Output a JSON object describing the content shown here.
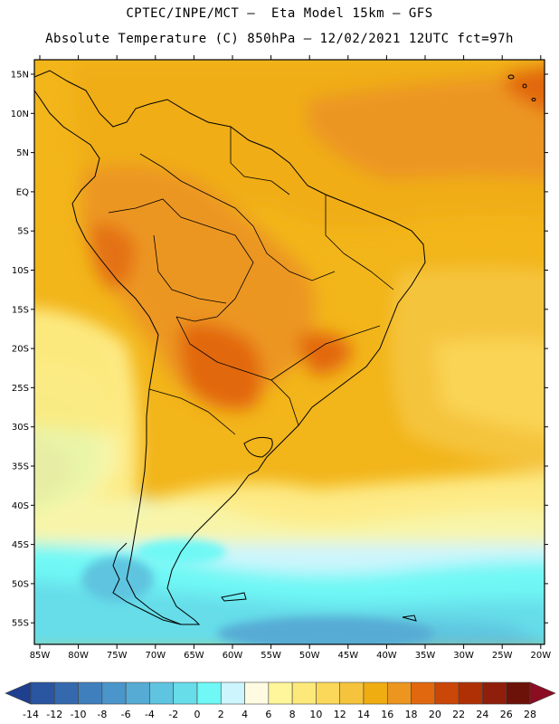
{
  "header": {
    "line1": "CPTEC/INPE/MCT –  Eta Model 15km – GFS",
    "line2": "Absolute Temperature (C) 850hPa – 12/02/2021 12UTC fct=97h"
  },
  "map": {
    "lat_labels": [
      "15N",
      "10N",
      "5N",
      "EQ",
      "5S",
      "10S",
      "15S",
      "20S",
      "25S",
      "30S",
      "35S",
      "40S",
      "45S",
      "50S",
      "55S"
    ],
    "lon_labels": [
      "85W",
      "80W",
      "75W",
      "70W",
      "65W",
      "60W",
      "55W",
      "50W",
      "45W",
      "40W",
      "35W",
      "30W",
      "25W",
      "20W"
    ]
  },
  "colorbar": {
    "labels": [
      "-14",
      "-12",
      "-10",
      "-8",
      "-6",
      "-4",
      "-2",
      "0",
      "2",
      "4",
      "6",
      "8",
      "10",
      "12",
      "14",
      "16",
      "18",
      "20",
      "22",
      "24",
      "26",
      "28"
    ],
    "colors": [
      "#1f3f8f",
      "#2a55a0",
      "#3469ae",
      "#3f7fbd",
      "#4a95c9",
      "#56abd4",
      "#5fc4df",
      "#66dde9",
      "#6ff8f5",
      "#cdf5fd",
      "#fffbe3",
      "#fff59a",
      "#fde97a",
      "#fbd85a",
      "#f5c43c",
      "#f0ad12",
      "#ec9620",
      "#e26810",
      "#ca4708",
      "#b03005",
      "#8f1f0a",
      "#6d1208",
      "#8c0c22"
    ]
  }
}
